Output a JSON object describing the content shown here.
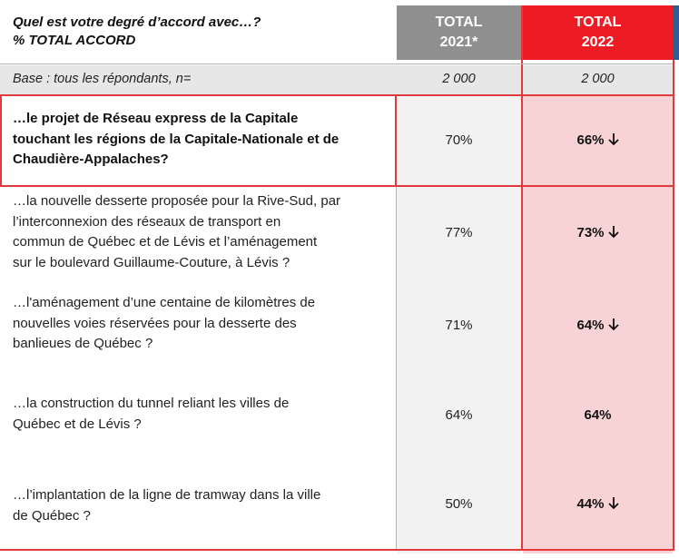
{
  "header": {
    "question_line1": "Quel est votre degré d’accord avec…?",
    "question_line2": "% TOTAL ACCORD",
    "col1_line1": "TOTAL",
    "col1_line2": "2021*",
    "col2_line1": "TOTAL",
    "col2_line2": "2022"
  },
  "base": {
    "label": "Base : tous les répondants, n=",
    "v2021": "2 000",
    "v2022": "2 000"
  },
  "rows": [
    {
      "lines": [
        "…le projet de Réseau express de la Capitale",
        "touchant les régions de la Capitale-Nationale et de",
        "Chaudière-Appalaches?"
      ],
      "v2021": "70%",
      "v2022": "66%",
      "trend": "down"
    },
    {
      "lines": [
        "…la nouvelle desserte proposée pour la Rive-Sud, par",
        "l’interconnexion des réseaux de transport en",
        "commun de Québec et de Lévis et l’aménagement",
        "sur le boulevard Guillaume-Couture, à Lévis ?"
      ],
      "v2021": "77%",
      "v2022": "73%",
      "trend": "down"
    },
    {
      "lines": [
        "…l'aménagement d’une centaine de kilomètres de",
        "nouvelles voies réservées pour la desserte des",
        "banlieues de Québec ?"
      ],
      "v2021": "71%",
      "v2022": "64%",
      "trend": "down"
    },
    {
      "lines": [
        "…la construction du tunnel reliant les villes de",
        "Québec et de Lévis ?"
      ],
      "v2021": "64%",
      "v2022": "64%",
      "trend": "none"
    },
    {
      "lines": [
        "…l’implantation de la ligne de tramway dans la ville",
        "de Québec ?"
      ],
      "v2021": "50%",
      "v2022": "44%",
      "trend": "down"
    }
  ],
  "colors": {
    "accent_red": "#ed1c24",
    "header_gray": "#8f8f8f",
    "highlight_2022": "#f8d3d6",
    "edge_blue": "#2e5e8e"
  },
  "icons": {
    "trend_down": "arrow-down-icon"
  }
}
